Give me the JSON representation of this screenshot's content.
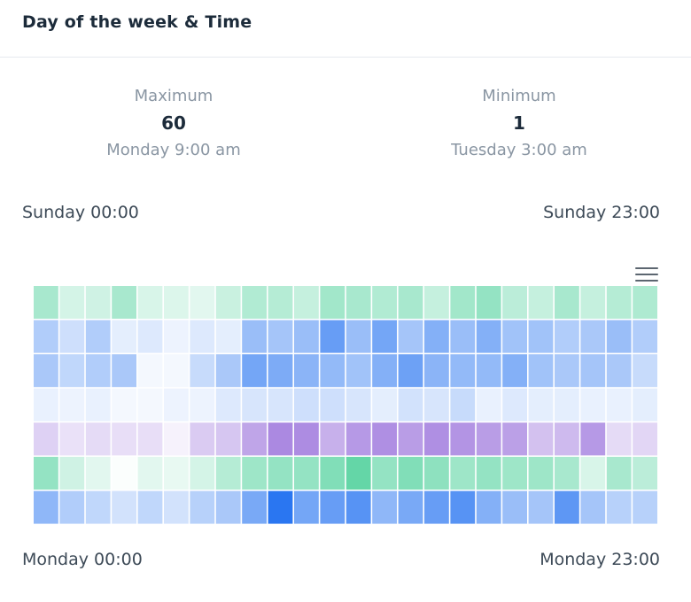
{
  "panel": {
    "title": "Day of the week & Time"
  },
  "stats": {
    "max_label": "Maximum",
    "max_value": "60",
    "max_when": "Monday 9:00 am",
    "min_label": "Minimum",
    "min_value": "1",
    "min_when": "Tuesday 3:00 am"
  },
  "range_labels": {
    "top_left": "Sunday 00:00",
    "top_right": "Sunday 23:00",
    "bottom_left": "Monday 00:00",
    "bottom_right": "Monday 23:00"
  },
  "menu_icon": "hamburger-menu-icon",
  "chart_data": {
    "type": "heatmap",
    "columns": 24,
    "rows": [
      {
        "color": "#3dcc91",
        "values": [
          0.45,
          0.22,
          0.25,
          0.45,
          0.2,
          0.18,
          0.15,
          0.28,
          0.4,
          0.38,
          0.3,
          0.48,
          0.45,
          0.4,
          0.45,
          0.3,
          0.48,
          0.55,
          0.35,
          0.3,
          0.45,
          0.3,
          0.38,
          0.42
        ]
      },
      {
        "color": "#1f6ff0",
        "values": [
          0.35,
          0.22,
          0.35,
          0.12,
          0.15,
          0.08,
          0.15,
          0.12,
          0.45,
          0.4,
          0.45,
          0.68,
          0.45,
          0.62,
          0.4,
          0.55,
          0.45,
          0.55,
          0.42,
          0.42,
          0.35,
          0.38,
          0.45,
          0.35
        ]
      },
      {
        "color": "#1f6ff0",
        "values": [
          0.38,
          0.28,
          0.35,
          0.38,
          0.05,
          0.05,
          0.25,
          0.38,
          0.62,
          0.58,
          0.52,
          0.48,
          0.42,
          0.55,
          0.65,
          0.52,
          0.48,
          0.48,
          0.55,
          0.42,
          0.38,
          0.4,
          0.38,
          0.25
        ]
      },
      {
        "color": "#1f6ff0",
        "values": [
          0.1,
          0.08,
          0.1,
          0.05,
          0.05,
          0.08,
          0.08,
          0.15,
          0.18,
          0.18,
          0.22,
          0.22,
          0.18,
          0.12,
          0.2,
          0.18,
          0.25,
          0.1,
          0.15,
          0.12,
          0.12,
          0.1,
          0.1,
          0.12
        ]
      },
      {
        "color": "#8a5bd6",
        "values": [
          0.28,
          0.18,
          0.22,
          0.2,
          0.2,
          0.08,
          0.32,
          0.35,
          0.55,
          0.72,
          0.7,
          0.48,
          0.62,
          0.68,
          0.6,
          0.68,
          0.65,
          0.6,
          0.58,
          0.38,
          0.42,
          0.62,
          0.22,
          0.25
        ]
      },
      {
        "color": "#3dcc91",
        "values": [
          0.55,
          0.25,
          0.15,
          0.02,
          0.15,
          0.12,
          0.22,
          0.38,
          0.5,
          0.55,
          0.55,
          0.65,
          0.8,
          0.55,
          0.65,
          0.58,
          0.5,
          0.55,
          0.5,
          0.5,
          0.45,
          0.2,
          0.45,
          0.35
        ]
      },
      {
        "color": "#1f6ff0",
        "values": [
          0.5,
          0.35,
          0.28,
          0.2,
          0.28,
          0.2,
          0.32,
          0.38,
          0.6,
          0.95,
          0.62,
          0.68,
          0.75,
          0.5,
          0.6,
          0.68,
          0.75,
          0.55,
          0.45,
          0.4,
          0.72,
          0.4,
          0.32,
          0.32
        ]
      }
    ]
  }
}
